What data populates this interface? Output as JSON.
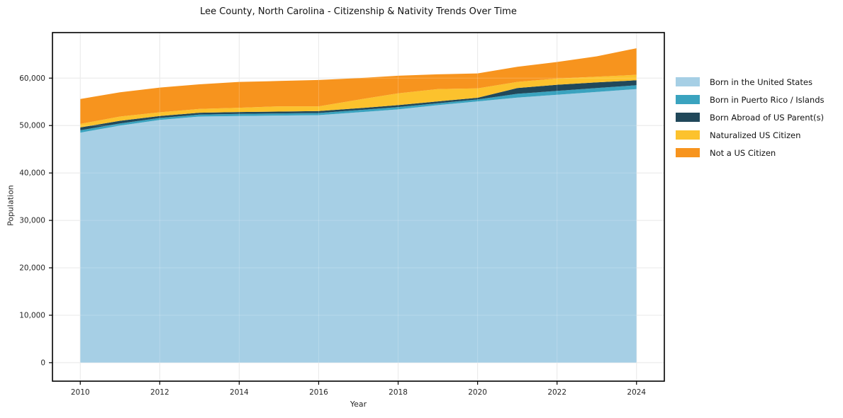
{
  "chart_data": {
    "type": "area",
    "stacked": true,
    "title": "Lee County, North Carolina - Citizenship & Nativity Trends Over Time",
    "xlabel": "Year",
    "ylabel": "Population",
    "x": [
      2010,
      2011,
      2012,
      2013,
      2014,
      2015,
      2016,
      2017,
      2018,
      2019,
      2020,
      2021,
      2022,
      2023,
      2024
    ],
    "series": [
      {
        "name": "Born in the United States",
        "color": "#a6cfe5",
        "values": [
          48500,
          50000,
          51200,
          51900,
          52000,
          52100,
          52200,
          52800,
          53400,
          54300,
          55100,
          55900,
          56500,
          57100,
          57700
        ]
      },
      {
        "name": "Born in Puerto Rico / Islands",
        "color": "#3aa3bf",
        "values": [
          500,
          450,
          400,
          400,
          450,
          450,
          450,
          450,
          500,
          400,
          400,
          800,
          800,
          800,
          800
        ]
      },
      {
        "name": "Born Abroad of US Parent(s)",
        "color": "#21485a",
        "values": [
          600,
          550,
          400,
          400,
          400,
          400,
          400,
          400,
          400,
          400,
          350,
          1200,
          1300,
          1200,
          1050
        ]
      },
      {
        "name": "Naturalized US Citizen",
        "color": "#fcc22d",
        "values": [
          750,
          900,
          800,
          800,
          900,
          1100,
          1000,
          1800,
          2500,
          2600,
          2000,
          1300,
          1300,
          1200,
          1150
        ]
      },
      {
        "name": "Not a US Citizen",
        "color": "#f7941e",
        "values": [
          5250,
          5100,
          5200,
          5200,
          5450,
          5350,
          5550,
          4550,
          3700,
          3100,
          3150,
          3200,
          3500,
          4300,
          5600
        ]
      }
    ],
    "xlim": [
      2009.3,
      2024.7
    ],
    "ylim": [
      -3900,
      69600
    ],
    "xticks": {
      "values": [
        2010,
        2012,
        2014,
        2016,
        2018,
        2020,
        2022,
        2024
      ],
      "labels": [
        "2010",
        "2012",
        "2014",
        "2016",
        "2018",
        "2020",
        "2022",
        "2024"
      ]
    },
    "yticks": {
      "values": [
        0,
        10000,
        20000,
        30000,
        40000,
        50000,
        60000
      ],
      "labels": [
        "0",
        "10,000",
        "20,000",
        "30,000",
        "40,000",
        "50,000",
        "60,000"
      ]
    },
    "grid": true,
    "legend_position": "right"
  }
}
